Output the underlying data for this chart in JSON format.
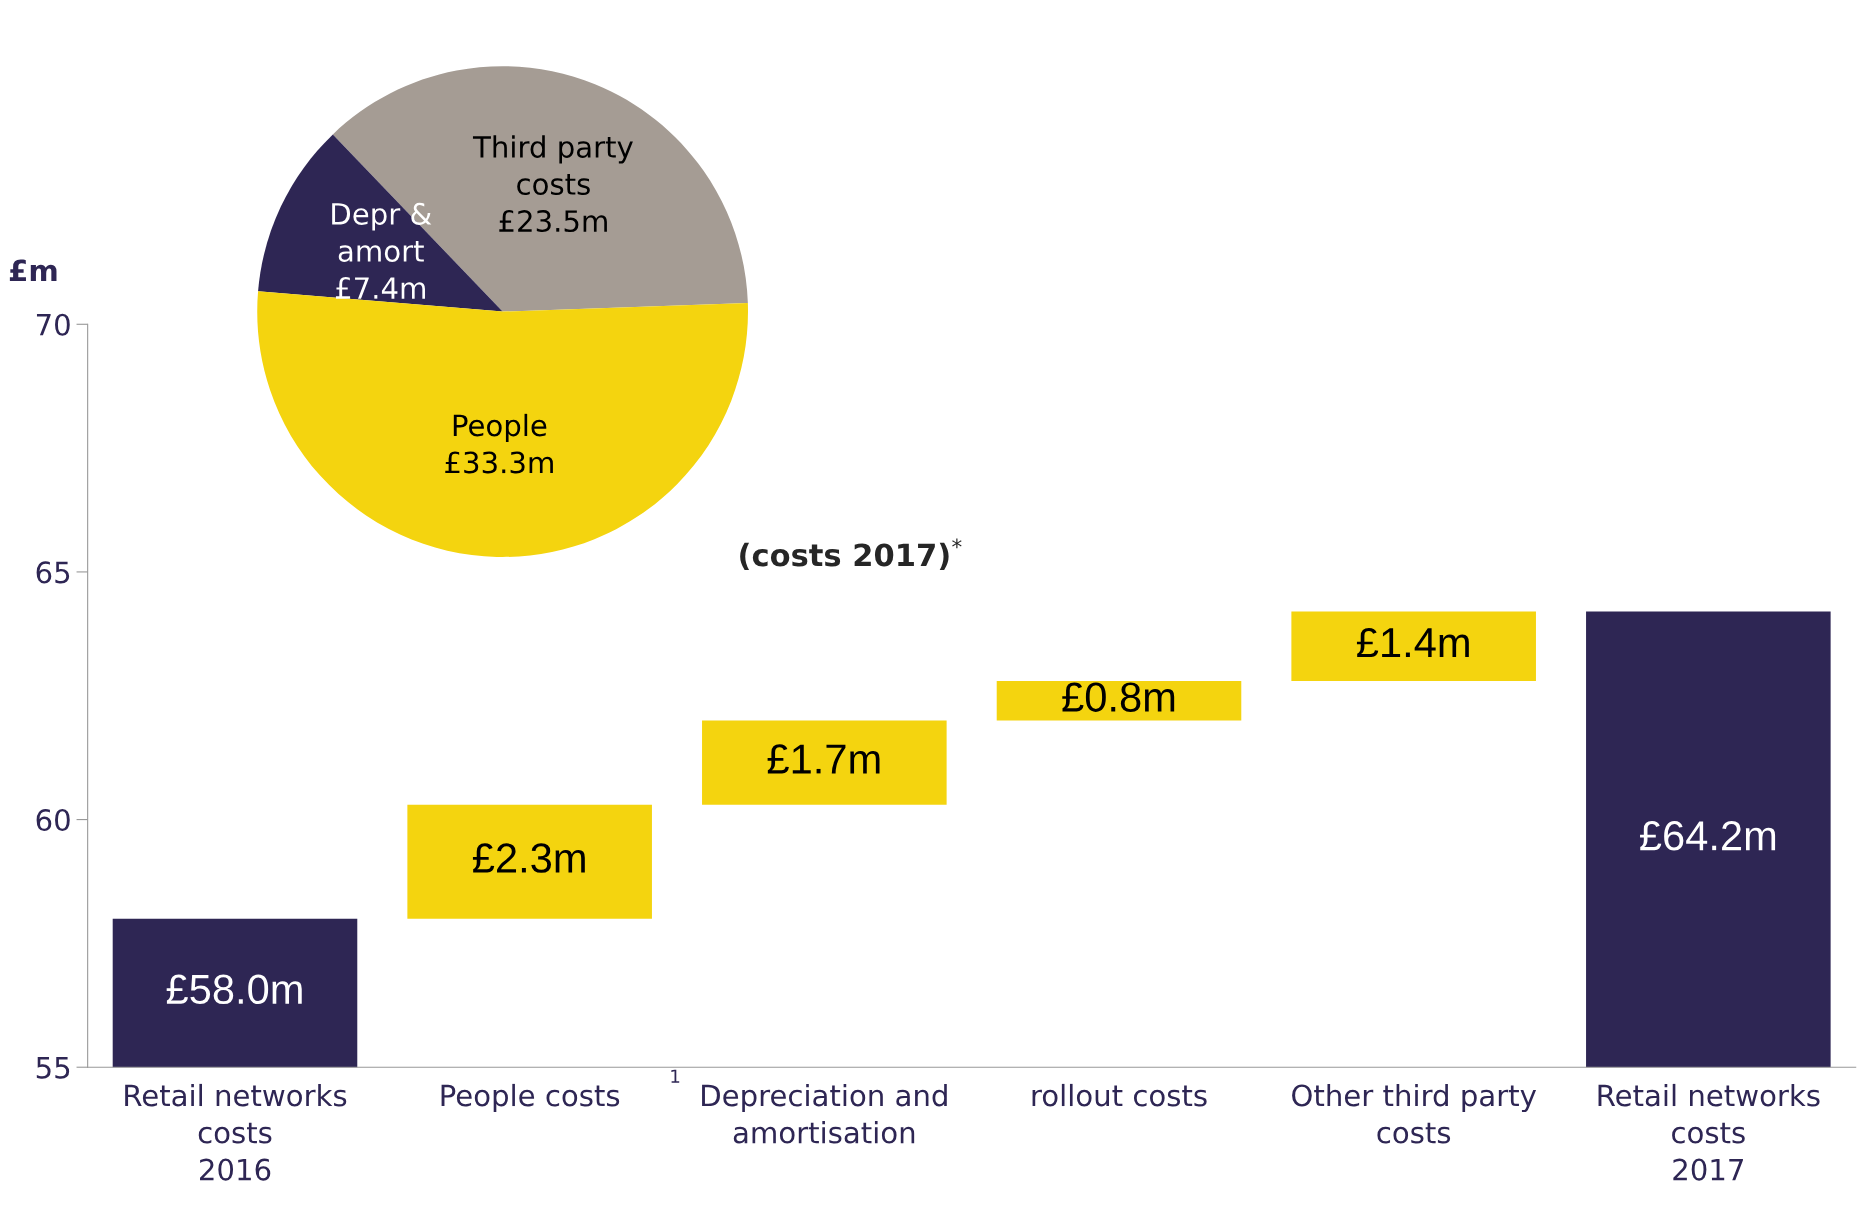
{
  "chart_data": [
    {
      "type": "pie",
      "categories": [
        "Third party\ncosts",
        "Depr &\namort",
        "People"
      ],
      "values": [
        23.5,
        7.4,
        33.3
      ],
      "colors": [
        "#a59c94",
        "#2e2654",
        "#f4d40f"
      ],
      "value_labels": [
        "£23.5m",
        "£7.4m",
        "£33.3m"
      ],
      "annotations": [
        "(costs 2017)$^{*}$"
      ]
    },
    {
      "type": "bar",
      "categories": [
        "Retail networks\ncosts\n2016",
        "People costs",
        "Depreciation and\namortisation",
        "rollout costs",
        "Other third party\ncosts",
        "Retail networks\ncosts\n2017"
      ],
      "values": [
        58.0,
        2.3,
        1.7,
        0.8,
        1.4,
        64.2
      ],
      "base": [
        null,
        58.0,
        60.3,
        62.0,
        62.8,
        null
      ],
      "colors": [
        "#2e2654",
        "#f4d40f",
        "#f4d40f",
        "#f4d40f",
        "#f4d40f",
        "#2e2654"
      ],
      "value_labels": [
        "£58.0m",
        "£2.3m",
        "£1.7m",
        "£0.8m",
        "£1.4m",
        "£64.2m"
      ],
      "ylabel": "£m",
      "ylim": [
        55,
        70
      ],
      "yticks": [
        55,
        60,
        65,
        70
      ],
      "grid": false,
      "legend": false,
      "annotations": [
        "1"
      ]
    }
  ]
}
